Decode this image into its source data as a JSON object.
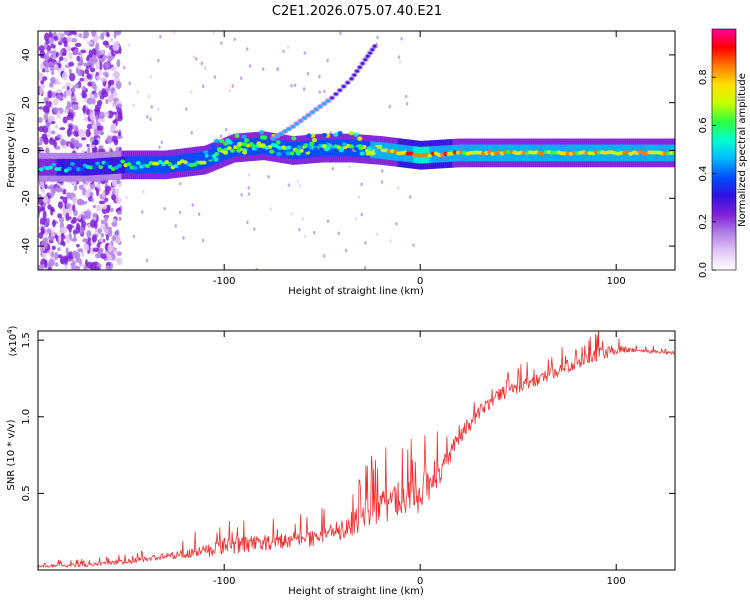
{
  "figure_title": "C2E1.2026.075.07.40.E21",
  "chart_data": [
    {
      "type": "heatmap",
      "xlabel": "Height of straight line (km)",
      "ylabel": "Frequency (Hz)",
      "xlim": [
        -195,
        130
      ],
      "ylim": [
        -50,
        50
      ],
      "x_ticks": [
        -100,
        0,
        100
      ],
      "x_tick_labels": [
        "-100",
        "0",
        "100"
      ],
      "y_ticks": [
        -40,
        -20,
        0,
        20,
        40
      ],
      "y_tick_labels": [
        "-40",
        "-20",
        "0",
        "20",
        "40"
      ],
      "colorbar": {
        "label": "Normalized spectral amplitude",
        "range": [
          0,
          1
        ],
        "ticks": [
          0,
          0.2,
          0.4,
          0.6,
          0.8
        ],
        "tick_labels": [
          "0.0",
          "0.2",
          "0.4",
          "0.6",
          "0.8"
        ],
        "colors": [
          "#ffffff",
          "#e3c6f5",
          "#b07fe6",
          "#8020d8",
          "#3010e0",
          "#0050ff",
          "#00b8ff",
          "#00ffd0",
          "#30ff40",
          "#c8ff00",
          "#ffe000",
          "#ff7a00",
          "#ff0000",
          "#ff00a0"
        ]
      },
      "main_band": [
        {
          "x": -190,
          "f": -7,
          "a": 0.42
        },
        {
          "x": -170,
          "f": -7,
          "a": 0.48
        },
        {
          "x": -150,
          "f": -6,
          "a": 0.56
        },
        {
          "x": -130,
          "f": -6,
          "a": 0.58
        },
        {
          "x": -110,
          "f": -4,
          "a": 0.6
        },
        {
          "x": -95,
          "f": 1,
          "a": 0.66
        },
        {
          "x": -80,
          "f": 2,
          "a": 0.62
        },
        {
          "x": -65,
          "f": 0,
          "a": 0.58
        },
        {
          "x": -50,
          "f": 1,
          "a": 0.6
        },
        {
          "x": -35,
          "f": 1,
          "a": 0.62
        },
        {
          "x": -20,
          "f": 0,
          "a": 0.72
        },
        {
          "x": -10,
          "f": -1,
          "a": 0.78
        },
        {
          "x": 0,
          "f": -2,
          "a": 0.82
        },
        {
          "x": 20,
          "f": -1,
          "a": 0.76
        },
        {
          "x": 50,
          "f": -1,
          "a": 0.74
        },
        {
          "x": 80,
          "f": -1,
          "a": 0.76
        },
        {
          "x": 110,
          "f": -1,
          "a": 0.74
        },
        {
          "x": 130,
          "f": -1,
          "a": 0.72
        }
      ],
      "rising_branch": [
        {
          "x": -75,
          "f": 5
        },
        {
          "x": -65,
          "f": 10
        },
        {
          "x": -55,
          "f": 16
        },
        {
          "x": -45,
          "f": 22
        },
        {
          "x": -35,
          "f": 30
        },
        {
          "x": -28,
          "f": 38
        },
        {
          "x": -22,
          "f": 45
        }
      ]
    },
    {
      "type": "line",
      "xlabel": "Height of straight line (km)",
      "ylabel": "SNR (10 * v/v)",
      "y_multiplier_label": "(x10",
      "y_multiplier_exponent": "4",
      "xlim": [
        -195,
        130
      ],
      "ylim": [
        0,
        15600
      ],
      "x_ticks": [
        -100,
        0,
        100
      ],
      "x_tick_labels": [
        "-100",
        "0",
        "100"
      ],
      "y_ticks": [
        5000,
        10000,
        15000
      ],
      "y_tick_labels": [
        "0.5",
        "1.0",
        "1.5"
      ],
      "line_color": "#ee3030",
      "series": [
        {
          "name": "SNR",
          "x": [
            -195,
            -170,
            -150,
            -130,
            -110,
            -100,
            -90,
            -80,
            -70,
            -60,
            -50,
            -40,
            -30,
            -20,
            -10,
            0,
            10,
            20,
            30,
            40,
            50,
            60,
            70,
            80,
            90,
            100,
            110,
            120,
            130
          ],
          "values": [
            200,
            300,
            500,
            800,
            1100,
            1400,
            1500,
            1600,
            1700,
            1800,
            2000,
            2400,
            3200,
            3800,
            4300,
            4500,
            6000,
            8500,
            10200,
            11300,
            11800,
            12300,
            12900,
            13400,
            13900,
            14300,
            14300,
            14200,
            14100
          ],
          "noise": [
            150,
            200,
            250,
            400,
            700,
            900,
            900,
            900,
            850,
            800,
            900,
            1200,
            1600,
            1900,
            2000,
            1800,
            1300,
            900,
            800,
            700,
            650,
            650,
            700,
            700,
            800,
            500,
            200,
            180,
            150
          ]
        }
      ]
    }
  ]
}
